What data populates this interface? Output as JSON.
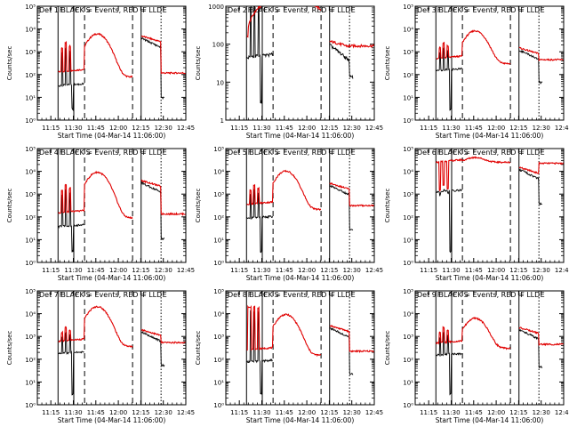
{
  "page": {
    "background": "#ffffff"
  },
  "colors": {
    "events": "#000000",
    "lld": "#e00000",
    "axis": "#000000"
  },
  "shared": {
    "xlabel": "Start Time (04-Mar-14 11:06:00)",
    "ylabel": "Counts/sec",
    "x_ticks": [
      "11:15",
      "11:30",
      "11:45",
      "12:00",
      "12:15",
      "12:30",
      "12:45"
    ],
    "markers": {
      "F": "F",
      "S": "S",
      "E": "E"
    }
  },
  "chart_data": [
    {
      "type": "line",
      "title": "Det 1   BLACK = Events, RED = LLD",
      "yscale": "log",
      "ylim": [
        1,
        100000
      ],
      "y_ticks": [
        "10⁰",
        "10¹",
        "10²",
        "10³",
        "10⁴",
        "10⁵"
      ],
      "series": [
        {
          "name": "Events",
          "color": "#000000"
        },
        {
          "name": "LLD",
          "color": "#e00000"
        }
      ]
    },
    {
      "type": "line",
      "title": "Det 2   BLACK = Events, RED = LLD",
      "yscale": "log",
      "ylim": [
        1,
        1000
      ],
      "y_ticks": [
        "1",
        "10",
        "100",
        "1000"
      ],
      "series": [
        {
          "name": "Events",
          "color": "#000000"
        },
        {
          "name": "LLD",
          "color": "#e00000"
        }
      ]
    },
    {
      "type": "line",
      "title": "Det 3   BLACK = Events, RED = LLD",
      "yscale": "log",
      "ylim": [
        1,
        100000
      ],
      "y_ticks": [
        "10⁰",
        "10¹",
        "10²",
        "10³",
        "10⁴",
        "10⁵"
      ],
      "series": [
        {
          "name": "Events",
          "color": "#000000"
        },
        {
          "name": "LLD",
          "color": "#e00000"
        }
      ]
    },
    {
      "type": "line",
      "title": "Det 4   BLACK = Events, RED = LLD",
      "yscale": "log",
      "ylim": [
        1,
        100000
      ],
      "y_ticks": [
        "10⁰",
        "10¹",
        "10²",
        "10³",
        "10⁴",
        "10⁵"
      ],
      "series": [
        {
          "name": "Events",
          "color": "#000000"
        },
        {
          "name": "LLD",
          "color": "#e00000"
        }
      ]
    },
    {
      "type": "line",
      "title": "Det 5   BLACK = Events, RED = LLD",
      "yscale": "log",
      "ylim": [
        1,
        100000
      ],
      "y_ticks": [
        "10⁰",
        "10¹",
        "10²",
        "10³",
        "10⁴",
        "10⁵"
      ],
      "series": [
        {
          "name": "Events",
          "color": "#000000"
        },
        {
          "name": "LLD",
          "color": "#e00000"
        }
      ]
    },
    {
      "type": "line",
      "title": "Det 6   BLACK = Events, RED = LLD",
      "yscale": "log",
      "ylim": [
        1,
        100000
      ],
      "y_ticks": [
        "10⁰",
        "10¹",
        "10²",
        "10³",
        "10⁴",
        "10⁵"
      ],
      "series": [
        {
          "name": "Events",
          "color": "#000000"
        },
        {
          "name": "LLD",
          "color": "#e00000"
        }
      ]
    },
    {
      "type": "line",
      "title": "Det 7   BLACK = Events, RED = LLD",
      "yscale": "log",
      "ylim": [
        1,
        100000
      ],
      "y_ticks": [
        "10⁰",
        "10¹",
        "10²",
        "10³",
        "10⁴",
        "10⁵"
      ],
      "series": [
        {
          "name": "Events",
          "color": "#000000"
        },
        {
          "name": "LLD",
          "color": "#e00000"
        }
      ]
    },
    {
      "type": "line",
      "title": "Det 8   BLACK = Events, RED = LLD",
      "yscale": "log",
      "ylim": [
        1,
        100000
      ],
      "y_ticks": [
        "10⁰",
        "10¹",
        "10²",
        "10³",
        "10⁴",
        "10⁵"
      ],
      "series": [
        {
          "name": "Events",
          "color": "#000000"
        },
        {
          "name": "LLD",
          "color": "#e00000"
        }
      ]
    },
    {
      "type": "line",
      "title": "Det 9   BLACK = Events, RED = LLD",
      "yscale": "log",
      "ylim": [
        1,
        100000
      ],
      "y_ticks": [
        "10⁰",
        "10¹",
        "10²",
        "10³",
        "10⁴",
        "10⁵"
      ],
      "series": [
        {
          "name": "Events",
          "color": "#000000"
        },
        {
          "name": "LLD",
          "color": "#e00000"
        }
      ]
    }
  ]
}
